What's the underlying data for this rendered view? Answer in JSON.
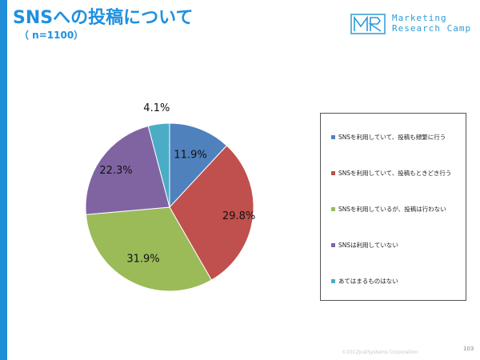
{
  "page": {
    "title": "SNSへの投稿について",
    "subtitle": "（ n=1100）",
    "footer": "©2012JustSystems Corporation",
    "page_number": "103"
  },
  "logo": {
    "mark_text": "MR",
    "line1": "Marketing",
    "line2": "Research Camp"
  },
  "colors": {
    "accent": "#1e90e0",
    "left_bar": "#1f8fd8"
  },
  "chart_data": {
    "type": "pie",
    "title": "",
    "categories": [
      "SNSを利用していて、投稿も頻繁に行う",
      "SNSを利用していて、投稿もときどき行う",
      "SNSを利用しているが、投稿は行わない",
      "SNSは利用していない",
      "あてはまるものはない"
    ],
    "values": [
      11.9,
      29.8,
      31.9,
      22.3,
      4.1
    ],
    "labels": [
      "11.9%",
      "29.8%",
      "31.9%",
      "22.3%",
      "4.1%"
    ],
    "colors": [
      "#4f81bd",
      "#c0504d",
      "#9bbb59",
      "#8064a2",
      "#4bacc6"
    ],
    "start": "12 o'clock, clockwise",
    "legend_position": "right"
  }
}
